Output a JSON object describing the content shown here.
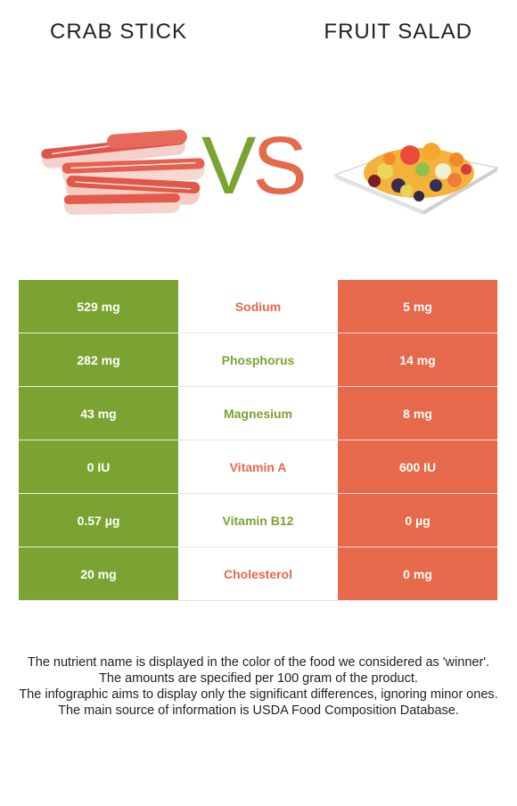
{
  "header": {
    "left_title": "CRAB STICK",
    "right_title": "FRUIT SALAD",
    "vs_v": "V",
    "vs_s": "S"
  },
  "colors": {
    "left_food": "#7ba332",
    "right_food": "#e5694a"
  },
  "rows": [
    {
      "left": "529 mg",
      "nutrient": "Sodium",
      "right": "5 mg",
      "winner": "right"
    },
    {
      "left": "282 mg",
      "nutrient": "Phosphorus",
      "right": "14 mg",
      "winner": "left"
    },
    {
      "left": "43 mg",
      "nutrient": "Magnesium",
      "right": "8 mg",
      "winner": "left"
    },
    {
      "left": "0 IU",
      "nutrient": "Vitamin A",
      "right": "600 IU",
      "winner": "right"
    },
    {
      "left": "0.57 µg",
      "nutrient": "Vitamin B12",
      "right": "0 µg",
      "winner": "left"
    },
    {
      "left": "20 mg",
      "nutrient": "Cholesterol",
      "right": "0 mg",
      "winner": "right"
    }
  ],
  "footer": {
    "line1": "The nutrient name is displayed in the color of the food we considered as 'winner'.",
    "line2": "The amounts are specified per 100 gram of the product.",
    "line3": "The infographic aims to display only the significant differences, ignoring minor ones.",
    "line4": "The main source of information is USDA Food Composition Database."
  }
}
